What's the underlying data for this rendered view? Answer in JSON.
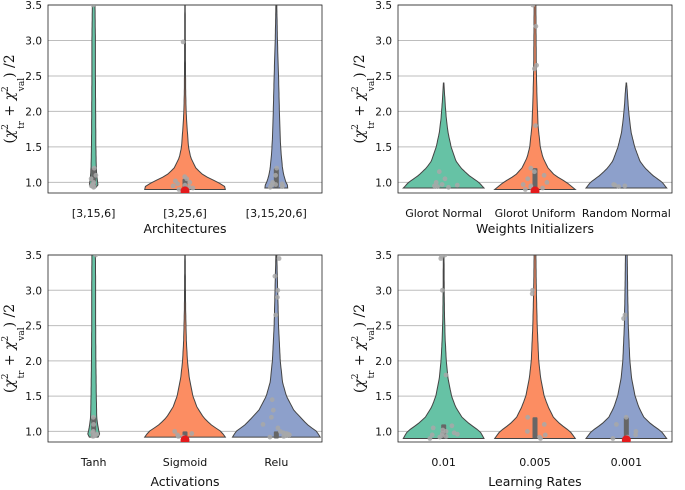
{
  "colors": {
    "green": "#66c2a5",
    "orange": "#fc8d62",
    "blue": "#8da0cb",
    "outline": "#444444",
    "grid": "#bdbdbd",
    "point": "#a8a8a8",
    "median": "#e41a1c",
    "box": "#666666"
  },
  "chart_data": [
    {
      "type": "violin",
      "xlabel": "Architectures",
      "ylabel": "(χ²_tr + χ²_val) / 2",
      "ylim": [
        0.85,
        3.5
      ],
      "yticks": [
        1.0,
        1.5,
        2.0,
        2.5,
        3.0,
        3.5
      ],
      "ytick_labels": [
        "1.0",
        "1.5",
        "2.0",
        "2.5",
        "3.0",
        "3.5"
      ],
      "categories": [
        "[3,15,6]",
        "[3,25,6]",
        "[3,15,20,6]"
      ],
      "violins": [
        {
          "color": "green",
          "min": 0.92,
          "max": 3.5,
          "profile": [
            [
              0.92,
              0.04
            ],
            [
              0.95,
              0.1
            ],
            [
              1.0,
              0.09
            ],
            [
              1.1,
              0.07
            ],
            [
              1.2,
              0.06
            ],
            [
              1.5,
              0.05
            ],
            [
              2.0,
              0.045
            ],
            [
              2.5,
              0.04
            ],
            [
              3.0,
              0.04
            ],
            [
              3.5,
              0.03
            ]
          ],
          "box": [
            0.92,
            1.2
          ],
          "median": null,
          "points": [
            0.93,
            0.94,
            0.95,
            0.96,
            0.98,
            1.0,
            1.05,
            1.1,
            1.2,
            3.5
          ]
        },
        {
          "color": "orange",
          "min": 0.9,
          "max": 3.5,
          "profile": [
            [
              0.9,
              0.92
            ],
            [
              0.95,
              0.9
            ],
            [
              1.0,
              0.75
            ],
            [
              1.1,
              0.42
            ],
            [
              1.2,
              0.25
            ],
            [
              1.35,
              0.13
            ],
            [
              1.5,
              0.08
            ],
            [
              1.75,
              0.05
            ],
            [
              2.0,
              0.025
            ],
            [
              2.3,
              0.015
            ],
            [
              2.7,
              0.01
            ],
            [
              3.0,
              0.008
            ],
            [
              3.5,
              0.005
            ]
          ],
          "box": [
            0.88,
            1.05
          ],
          "median": 0.88,
          "points": [
            0.9,
            0.92,
            0.93,
            0.95,
            0.96,
            0.98,
            1.0,
            1.02,
            1.05,
            1.08,
            2.98
          ]
        },
        {
          "color": "blue",
          "min": 0.92,
          "max": 3.5,
          "profile": [
            [
              0.92,
              0.26
            ],
            [
              0.97,
              0.25
            ],
            [
              1.0,
              0.22
            ],
            [
              1.1,
              0.17
            ],
            [
              1.2,
              0.14
            ],
            [
              1.4,
              0.11
            ],
            [
              1.6,
              0.09
            ],
            [
              1.8,
              0.08
            ],
            [
              2.0,
              0.07
            ],
            [
              2.5,
              0.05
            ],
            [
              3.0,
              0.025
            ],
            [
              3.5,
              0.01
            ]
          ],
          "box": [
            0.93,
            1.2
          ],
          "median": null,
          "points": [
            0.93,
            0.94,
            0.95,
            0.96,
            0.97,
            0.98,
            1.0,
            1.1,
            1.2
          ]
        }
      ]
    },
    {
      "type": "violin",
      "xlabel": "Weights Initializers",
      "ylabel": "(χ²_tr + χ²_val) / 2",
      "ylim": [
        0.85,
        3.5
      ],
      "yticks": [
        1.0,
        1.5,
        2.0,
        2.5,
        3.0,
        3.5
      ],
      "ytick_labels": [
        "1.0",
        "1.5",
        "2.0",
        "2.5",
        "3.0",
        "3.5"
      ],
      "categories": [
        "Glorot Normal",
        "Glorot Uniform",
        "Random Normal"
      ],
      "violins": [
        {
          "color": "green",
          "min": 0.92,
          "max": 2.4,
          "profile": [
            [
              0.92,
              0.92
            ],
            [
              1.0,
              0.8
            ],
            [
              1.1,
              0.57
            ],
            [
              1.2,
              0.4
            ],
            [
              1.3,
              0.28
            ],
            [
              1.5,
              0.17
            ],
            [
              1.7,
              0.1
            ],
            [
              1.9,
              0.06
            ],
            [
              2.1,
              0.035
            ],
            [
              2.3,
              0.015
            ],
            [
              2.4,
              0.005
            ]
          ],
          "box": null,
          "median": null,
          "points": [
            0.93,
            0.94,
            0.95,
            0.96,
            0.97,
            1.0,
            1.05,
            1.15
          ]
        },
        {
          "color": "orange",
          "min": 0.9,
          "max": 3.5,
          "profile": [
            [
              0.9,
              0.92
            ],
            [
              1.0,
              0.72
            ],
            [
              1.1,
              0.45
            ],
            [
              1.2,
              0.3
            ],
            [
              1.35,
              0.18
            ],
            [
              1.5,
              0.12
            ],
            [
              1.8,
              0.07
            ],
            [
              2.2,
              0.045
            ],
            [
              2.6,
              0.03
            ],
            [
              3.0,
              0.025
            ],
            [
              3.5,
              0.02
            ]
          ],
          "box": [
            0.88,
            1.2
          ],
          "median": 0.88,
          "points": [
            0.9,
            0.92,
            0.93,
            0.95,
            0.97,
            1.0,
            1.05,
            1.1,
            1.15,
            1.2,
            1.8,
            2.6,
            2.65,
            3.2,
            3.5
          ]
        },
        {
          "color": "blue",
          "min": 0.92,
          "max": 2.4,
          "profile": [
            [
              0.92,
              0.92
            ],
            [
              1.0,
              0.82
            ],
            [
              1.1,
              0.6
            ],
            [
              1.2,
              0.43
            ],
            [
              1.3,
              0.31
            ],
            [
              1.5,
              0.19
            ],
            [
              1.7,
              0.11
            ],
            [
              1.9,
              0.07
            ],
            [
              2.1,
              0.04
            ],
            [
              2.3,
              0.02
            ],
            [
              2.4,
              0.005
            ]
          ],
          "box": null,
          "median": null,
          "points": [
            0.94,
            0.95,
            0.96,
            0.97
          ]
        }
      ]
    },
    {
      "type": "violin",
      "xlabel": "Activations",
      "ylabel": "(χ²_tr + χ²_val) / 2",
      "ylim": [
        0.85,
        3.5
      ],
      "yticks": [
        1.0,
        1.5,
        2.0,
        2.5,
        3.0,
        3.5
      ],
      "ytick_labels": [
        "1.0",
        "1.5",
        "2.0",
        "2.5",
        "3.0",
        "3.5"
      ],
      "categories": [
        "Tanh",
        "Sigmoid",
        "Relu"
      ],
      "violins": [
        {
          "color": "green",
          "min": 0.92,
          "max": 3.5,
          "profile": [
            [
              0.92,
              0.1
            ],
            [
              0.95,
              0.14
            ],
            [
              1.0,
              0.12
            ],
            [
              1.1,
              0.09
            ],
            [
              1.2,
              0.07
            ],
            [
              1.5,
              0.06
            ],
            [
              2.0,
              0.05
            ],
            [
              2.5,
              0.045
            ],
            [
              3.0,
              0.045
            ],
            [
              3.5,
              0.04
            ]
          ],
          "box": [
            0.92,
            1.2
          ],
          "median": null,
          "points": [
            0.93,
            0.94,
            0.95,
            0.96,
            0.98,
            1.0,
            1.1,
            1.2,
            3.5
          ]
        },
        {
          "color": "orange",
          "min": 0.92,
          "max": 3.5,
          "profile": [
            [
              0.92,
              0.92
            ],
            [
              1.0,
              0.82
            ],
            [
              1.1,
              0.58
            ],
            [
              1.2,
              0.42
            ],
            [
              1.35,
              0.27
            ],
            [
              1.5,
              0.18
            ],
            [
              1.75,
              0.1
            ],
            [
              2.0,
              0.055
            ],
            [
              2.3,
              0.03
            ],
            [
              2.7,
              0.015
            ],
            [
              3.0,
              0.01
            ],
            [
              3.5,
              0.005
            ]
          ],
          "box": [
            0.88,
            1.0
          ],
          "median": 0.88,
          "points": [
            0.9,
            0.92,
            0.93,
            0.95,
            0.97,
            1.0
          ]
        },
        {
          "color": "blue",
          "min": 0.92,
          "max": 3.5,
          "profile": [
            [
              0.92,
              1.0
            ],
            [
              1.0,
              0.92
            ],
            [
              1.1,
              0.7
            ],
            [
              1.2,
              0.55
            ],
            [
              1.3,
              0.4
            ],
            [
              1.5,
              0.23
            ],
            [
              1.7,
              0.14
            ],
            [
              2.0,
              0.09
            ],
            [
              2.5,
              0.05
            ],
            [
              3.0,
              0.03
            ],
            [
              3.5,
              0.01
            ]
          ],
          "box": [
            0.9,
            1.0
          ],
          "median": null,
          "points": [
            0.92,
            0.93,
            0.94,
            0.95,
            0.96,
            0.97,
            0.98,
            1.0,
            1.05,
            1.1,
            1.2,
            1.3,
            1.45,
            2.65,
            2.9,
            3.0,
            3.2,
            3.45
          ]
        }
      ]
    },
    {
      "type": "violin",
      "xlabel": "Learning Rates",
      "ylabel": "(χ²_tr + χ²_val) / 2",
      "ylim": [
        0.85,
        3.5
      ],
      "yticks": [
        1.0,
        1.5,
        2.0,
        2.5,
        3.0,
        3.5
      ],
      "ytick_labels": [
        "1.0",
        "1.5",
        "2.0",
        "2.5",
        "3.0",
        "3.5"
      ],
      "categories": [
        "0.01",
        "0.005",
        "0.001"
      ],
      "violins": [
        {
          "color": "green",
          "min": 0.9,
          "max": 3.5,
          "profile": [
            [
              0.9,
              0.92
            ],
            [
              1.0,
              0.83
            ],
            [
              1.1,
              0.6
            ],
            [
              1.2,
              0.42
            ],
            [
              1.35,
              0.27
            ],
            [
              1.5,
              0.18
            ],
            [
              1.75,
              0.1
            ],
            [
              2.0,
              0.06
            ],
            [
              2.3,
              0.035
            ],
            [
              2.6,
              0.02
            ],
            [
              3.0,
              0.012
            ],
            [
              3.5,
              0.008
            ]
          ],
          "box": [
            0.9,
            1.1
          ],
          "median": null,
          "points": [
            0.9,
            0.92,
            0.93,
            0.94,
            0.95,
            0.96,
            0.97,
            0.98,
            1.0,
            1.02,
            1.05,
            1.08,
            1.8,
            3.0,
            3.45,
            3.48,
            3.5
          ]
        },
        {
          "color": "orange",
          "min": 0.9,
          "max": 3.5,
          "profile": [
            [
              0.9,
              0.92
            ],
            [
              1.0,
              0.8
            ],
            [
              1.1,
              0.58
            ],
            [
              1.2,
              0.42
            ],
            [
              1.35,
              0.3
            ],
            [
              1.5,
              0.21
            ],
            [
              1.75,
              0.13
            ],
            [
              2.0,
              0.085
            ],
            [
              2.5,
              0.05
            ],
            [
              3.0,
              0.03
            ],
            [
              3.5,
              0.02
            ]
          ],
          "box": [
            0.9,
            1.2
          ],
          "median": null,
          "points": [
            0.9,
            0.92,
            0.95,
            1.0,
            1.1,
            1.2,
            2.95,
            3.0
          ]
        },
        {
          "color": "blue",
          "min": 0.9,
          "max": 3.5,
          "profile": [
            [
              0.9,
              0.92
            ],
            [
              1.0,
              0.8
            ],
            [
              1.1,
              0.57
            ],
            [
              1.2,
              0.4
            ],
            [
              1.35,
              0.28
            ],
            [
              1.5,
              0.2
            ],
            [
              1.75,
              0.12
            ],
            [
              2.0,
              0.08
            ],
            [
              2.5,
              0.045
            ],
            [
              3.0,
              0.03
            ],
            [
              3.5,
              0.02
            ]
          ],
          "box": [
            0.88,
            1.2
          ],
          "median": 0.88,
          "points": [
            0.9,
            0.92,
            0.95,
            1.0,
            1.1,
            1.2,
            2.6,
            2.65
          ]
        }
      ]
    }
  ]
}
